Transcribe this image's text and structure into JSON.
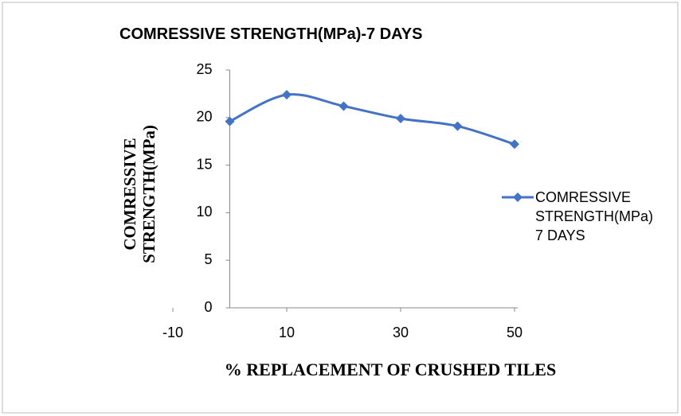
{
  "chart_data": {
    "type": "line",
    "title": "COMRESSIVE STRENGTH(MPa)-7 DAYS",
    "xlabel": "% REPLACEMENT OF CRUSHED TILES",
    "ylabel": "COMRESSIVE STRENGTH(MPa)",
    "x": [
      0,
      10,
      20,
      30,
      40,
      50
    ],
    "series": [
      {
        "name": "COMRESSIVE STRENGTH(MPa) 7 DAYS",
        "color": "#4472c4",
        "values": [
          19.6,
          22.4,
          21.2,
          19.9,
          19.1,
          17.2
        ]
      }
    ],
    "xlim": [
      -10,
      50
    ],
    "xticks": [
      -10,
      10,
      30,
      50
    ],
    "ylim": [
      0,
      25
    ],
    "yticks": [
      0,
      5,
      10,
      15,
      20,
      25
    ],
    "grid": false,
    "legend": "right"
  }
}
